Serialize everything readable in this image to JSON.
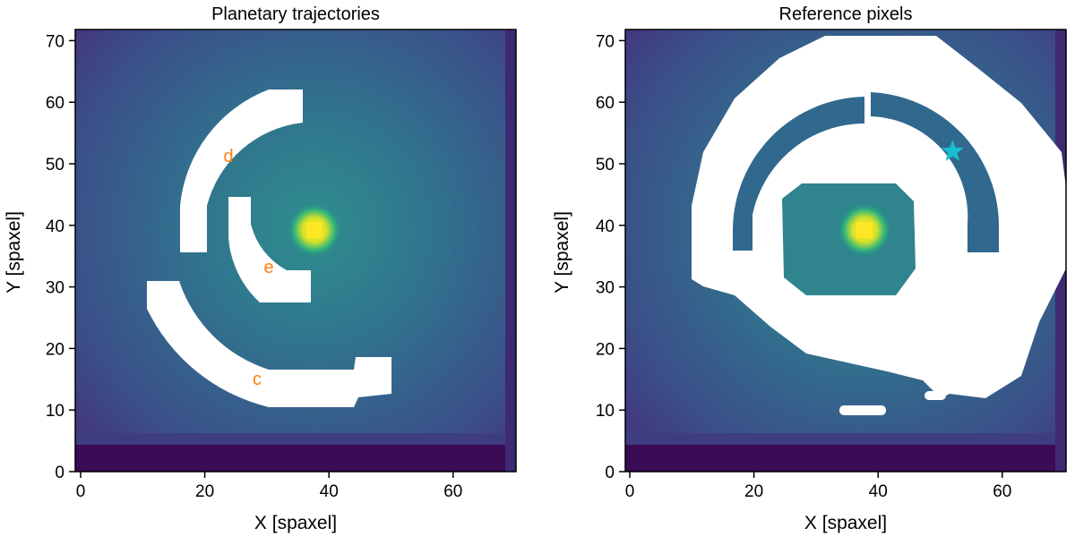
{
  "chart_data": [
    {
      "type": "heatmap",
      "title": "Planetary trajectories",
      "xlabel": "X [spaxel]",
      "ylabel": "Y [spaxel]",
      "xlim": [
        0,
        71
      ],
      "ylim": [
        0,
        71
      ],
      "xticks": [
        0,
        20,
        40,
        60
      ],
      "yticks": [
        0,
        10,
        20,
        30,
        40,
        50,
        60,
        70
      ],
      "grid": false,
      "star_center": [
        38.5,
        39
      ],
      "masked_regions": [
        {
          "label": "d",
          "kind": "ring-arc",
          "radius_range": [
            16,
            26
          ],
          "angle_range_deg": [
            95,
            180
          ],
          "y_min": 35
        },
        {
          "label": "e",
          "kind": "ring-arc",
          "radius_range": [
            6,
            10
          ],
          "angle_range_deg": [
            135,
            260
          ]
        },
        {
          "label": "c",
          "kind": "ring-arc",
          "radius_range": [
            20,
            28
          ],
          "angle_range_deg": [
            200,
            300
          ],
          "y_min": 11
        }
      ],
      "annotations": [
        {
          "text": "d",
          "x": 24,
          "y": 51,
          "color": "#ff7f0e"
        },
        {
          "text": "e",
          "x": 30,
          "y": 33,
          "color": "#ff7f0e"
        },
        {
          "text": "c",
          "x": 29,
          "y": 15,
          "color": "#ff7f0e"
        }
      ]
    },
    {
      "type": "heatmap",
      "title": "Reference pixels",
      "xlabel": "X [spaxel]",
      "ylabel": "Y [spaxel]",
      "xlim": [
        0,
        71
      ],
      "ylim": [
        0,
        71
      ],
      "xticks": [
        0,
        20,
        40,
        60
      ],
      "yticks": [
        0,
        10,
        20,
        30,
        40,
        50,
        60,
        70
      ],
      "grid": false,
      "star_center": [
        38.5,
        39
      ],
      "excluded_regions": [
        {
          "kind": "annulus",
          "radius_range": [
            25,
            36
          ]
        },
        {
          "kind": "annulus",
          "radius_range": [
            10,
            16
          ]
        }
      ],
      "marker": {
        "symbol": "star",
        "x": 52,
        "y": 52,
        "color": "#17becf"
      }
    }
  ],
  "colors": {
    "background_low": "#440154",
    "mid": "#31688e",
    "mask": "#ffffff",
    "peak": "#fde725",
    "annotation": "#ff7f0e",
    "marker": "#17becf"
  }
}
